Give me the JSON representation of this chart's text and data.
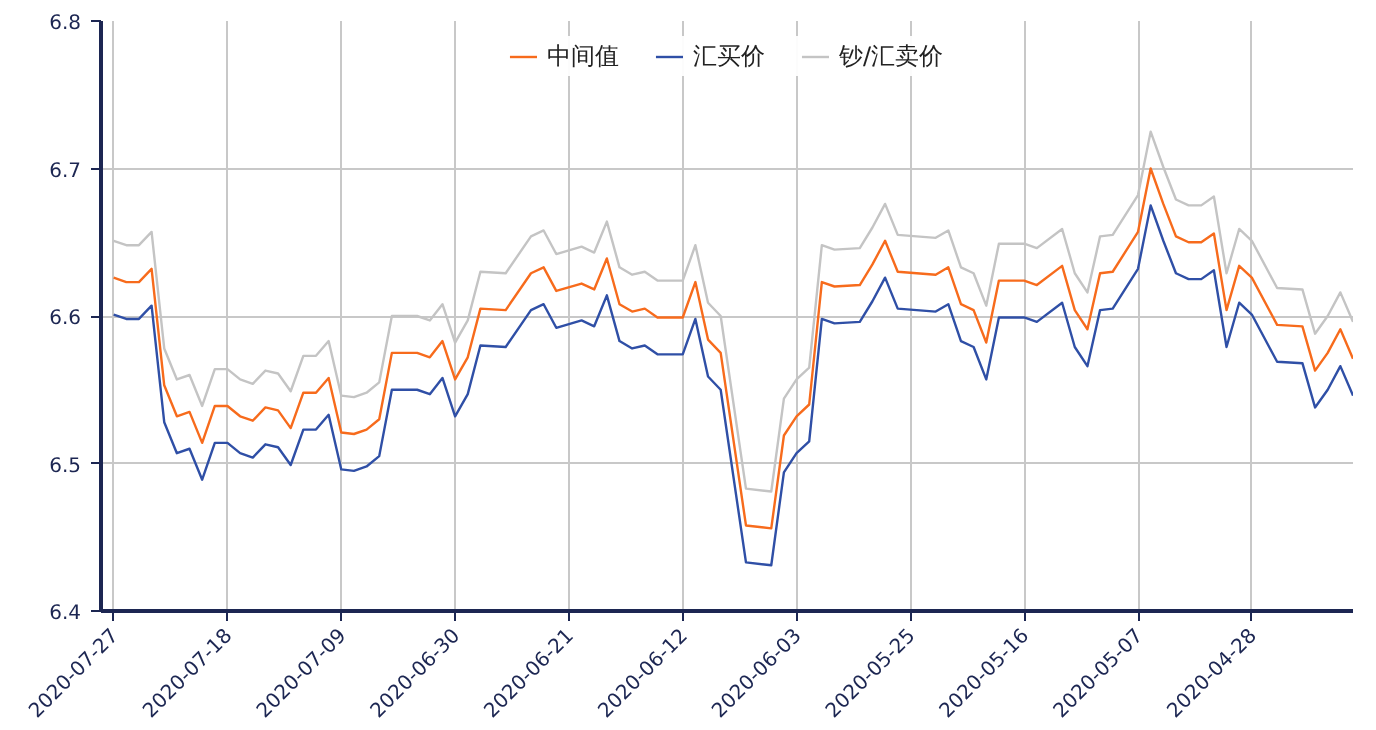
{
  "chart_data": {
    "type": "line",
    "x": [
      "2020-07-27",
      "2020-07-26",
      "2020-07-25",
      "2020-07-24",
      "2020-07-23",
      "2020-07-22",
      "2020-07-21",
      "2020-07-20",
      "2020-07-19",
      "2020-07-18",
      "2020-07-17",
      "2020-07-16",
      "2020-07-15",
      "2020-07-14",
      "2020-07-13",
      "2020-07-12",
      "2020-07-11",
      "2020-07-10",
      "2020-07-09",
      "2020-07-08",
      "2020-07-07",
      "2020-07-06",
      "2020-07-05",
      "2020-07-03",
      "2020-07-02",
      "2020-07-01",
      "2020-06-30",
      "2020-06-29",
      "2020-06-28",
      "2020-06-26",
      "2020-06-24",
      "2020-06-23",
      "2020-06-22",
      "2020-06-20",
      "2020-06-19",
      "2020-06-18",
      "2020-06-17",
      "2020-06-16",
      "2020-06-15",
      "2020-06-14",
      "2020-06-12",
      "2020-06-11",
      "2020-06-10",
      "2020-06-09",
      "2020-06-07",
      "2020-06-05",
      "2020-06-04",
      "2020-06-03",
      "2020-06-02",
      "2020-06-01",
      "2020-05-31",
      "2020-05-29",
      "2020-05-28",
      "2020-05-27",
      "2020-05-26",
      "2020-05-23",
      "2020-05-22",
      "2020-05-21",
      "2020-05-20",
      "2020-05-19",
      "2020-05-18",
      "2020-05-16",
      "2020-05-15",
      "2020-05-13",
      "2020-05-12",
      "2020-05-11",
      "2020-05-10",
      "2020-05-09",
      "2020-05-07",
      "2020-05-06",
      "2020-05-05",
      "2020-05-04",
      "2020-05-03",
      "2020-05-02",
      "2020-05-01",
      "2020-04-30",
      "2020-04-29",
      "2020-04-28",
      "2020-04-26",
      "2020-04-24",
      "2020-04-23",
      "2020-04-22",
      "2020-04-21",
      "2020-04-20"
    ],
    "series": [
      {
        "name": "中间值",
        "color": "#f76b1c",
        "values": [
          6.626,
          6.623,
          6.623,
          6.632,
          6.553,
          6.532,
          6.535,
          6.514,
          6.539,
          6.539,
          6.532,
          6.529,
          6.538,
          6.536,
          6.524,
          6.548,
          6.548,
          6.558,
          6.521,
          6.52,
          6.523,
          6.53,
          6.575,
          6.575,
          6.572,
          6.583,
          6.557,
          6.572,
          6.605,
          6.604,
          6.629,
          6.633,
          6.617,
          6.622,
          6.618,
          6.639,
          6.608,
          6.603,
          6.605,
          6.599,
          6.599,
          6.623,
          6.584,
          6.575,
          6.458,
          6.456,
          6.519,
          6.532,
          6.54,
          6.623,
          6.62,
          6.621,
          6.635,
          6.651,
          6.63,
          6.628,
          6.633,
          6.608,
          6.604,
          6.582,
          6.624,
          6.624,
          6.621,
          6.634,
          6.604,
          6.591,
          6.629,
          6.63,
          6.657,
          6.7,
          6.676,
          6.654,
          6.65,
          6.65,
          6.656,
          6.604,
          6.634,
          6.626,
          6.594,
          6.593,
          6.563,
          6.575,
          6.591,
          6.571
        ]
      },
      {
        "name": "汇买价",
        "color": "#2f4fa6",
        "values": [
          6.601,
          6.598,
          6.598,
          6.607,
          6.528,
          6.507,
          6.51,
          6.489,
          6.514,
          6.514,
          6.507,
          6.504,
          6.513,
          6.511,
          6.499,
          6.523,
          6.523,
          6.533,
          6.496,
          6.495,
          6.498,
          6.505,
          6.55,
          6.55,
          6.547,
          6.558,
          6.532,
          6.547,
          6.58,
          6.579,
          6.604,
          6.608,
          6.592,
          6.597,
          6.593,
          6.614,
          6.583,
          6.578,
          6.58,
          6.574,
          6.574,
          6.598,
          6.559,
          6.55,
          6.433,
          6.431,
          6.494,
          6.507,
          6.515,
          6.598,
          6.595,
          6.596,
          6.61,
          6.626,
          6.605,
          6.603,
          6.608,
          6.583,
          6.579,
          6.557,
          6.599,
          6.599,
          6.596,
          6.609,
          6.579,
          6.566,
          6.604,
          6.605,
          6.632,
          6.675,
          6.651,
          6.629,
          6.625,
          6.625,
          6.631,
          6.579,
          6.609,
          6.601,
          6.569,
          6.568,
          6.538,
          6.55,
          6.566,
          6.546
        ]
      },
      {
        "name": "钞/汇卖价",
        "color": "#c4c4c4",
        "values": [
          6.651,
          6.648,
          6.648,
          6.657,
          6.578,
          6.557,
          6.56,
          6.539,
          6.564,
          6.564,
          6.557,
          6.554,
          6.563,
          6.561,
          6.549,
          6.573,
          6.573,
          6.583,
          6.546,
          6.545,
          6.548,
          6.555,
          6.6,
          6.6,
          6.597,
          6.608,
          6.582,
          6.597,
          6.63,
          6.629,
          6.654,
          6.658,
          6.642,
          6.647,
          6.643,
          6.664,
          6.633,
          6.628,
          6.63,
          6.624,
          6.624,
          6.648,
          6.609,
          6.6,
          6.483,
          6.481,
          6.544,
          6.557,
          6.565,
          6.648,
          6.645,
          6.646,
          6.66,
          6.676,
          6.655,
          6.653,
          6.658,
          6.633,
          6.629,
          6.607,
          6.649,
          6.649,
          6.646,
          6.659,
          6.629,
          6.616,
          6.654,
          6.655,
          6.682,
          6.725,
          6.701,
          6.679,
          6.675,
          6.675,
          6.681,
          6.629,
          6.659,
          6.651,
          6.619,
          6.618,
          6.588,
          6.6,
          6.616,
          6.596
        ]
      }
    ],
    "xlim": [
      "2020-07-28",
      "2020-04-20"
    ],
    "xticks": [
      "2020-07-27",
      "2020-07-18",
      "2020-07-09",
      "2020-06-30",
      "2020-06-21",
      "2020-06-12",
      "2020-06-03",
      "2020-05-25",
      "2020-05-16",
      "2020-05-07",
      "2020-04-28"
    ],
    "ylim": [
      6.4,
      6.8
    ],
    "yticks": [
      6.4,
      6.5,
      6.6,
      6.7,
      6.8
    ],
    "grid": true,
    "legend": "top",
    "marker": "none",
    "line_style": "solid"
  }
}
